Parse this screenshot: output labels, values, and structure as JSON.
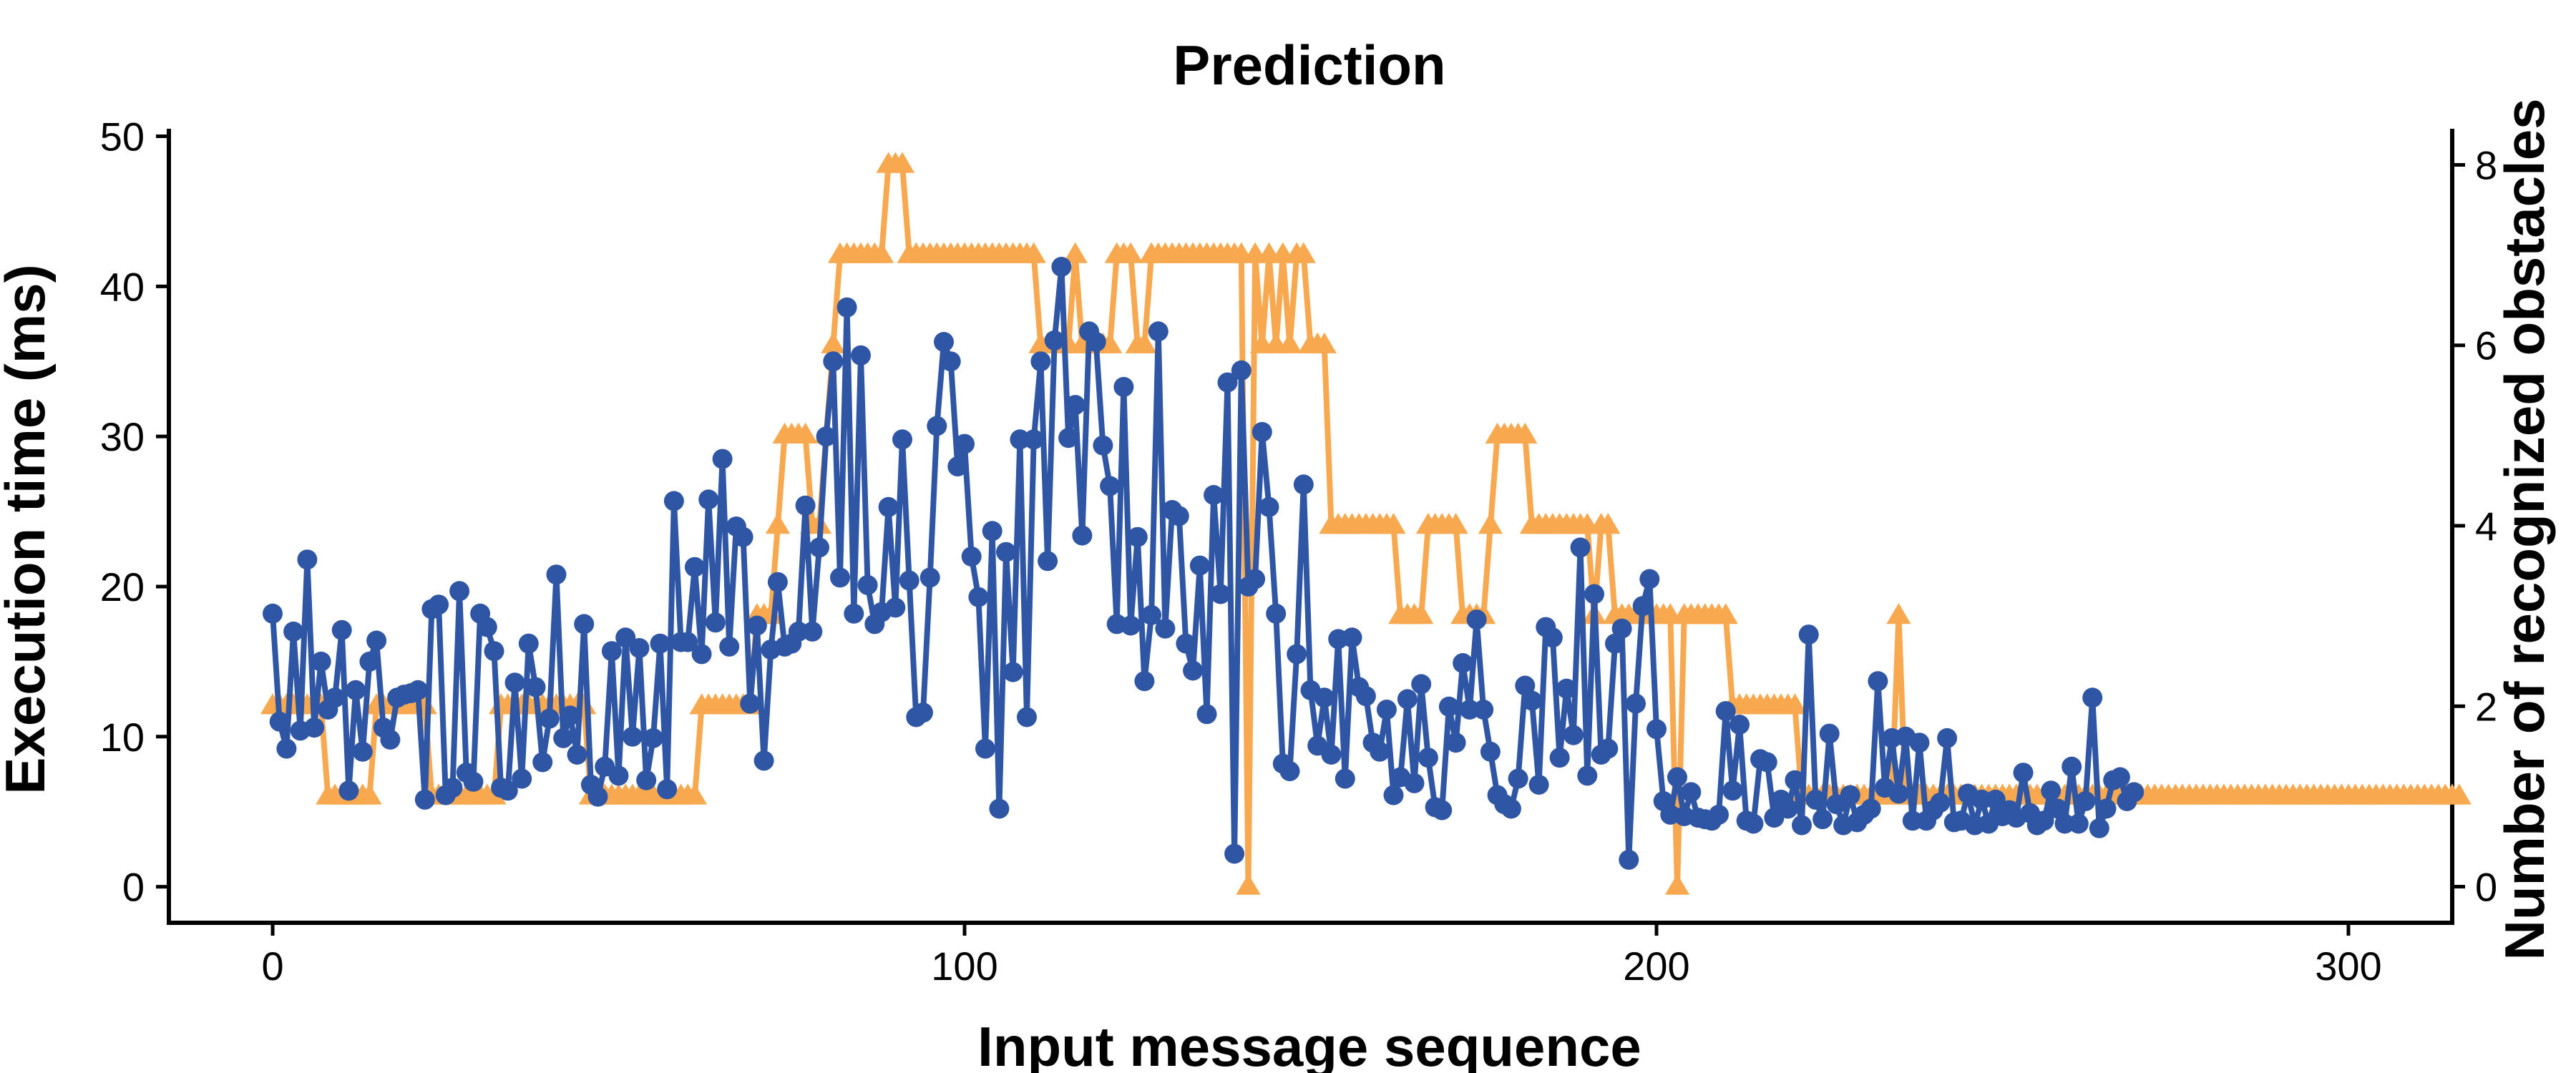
{
  "chart_data": {
    "type": "line",
    "title": "Prediction",
    "xlabel": "Input message sequence",
    "ylabel": "Execution time (ms)",
    "y2label": "Number of recognized obstacles",
    "xlim": [
      -15,
      315
    ],
    "ylim": [
      -2.4,
      50.5
    ],
    "y2lim": [
      -0.4,
      8.4
    ],
    "x_ticks": [
      0,
      100,
      200,
      300
    ],
    "y_ticks": [
      0,
      10,
      20,
      30,
      40,
      50
    ],
    "y2_ticks": [
      0,
      2,
      4,
      6,
      8
    ],
    "grid": false,
    "series": [
      {
        "axis": "left",
        "marker": "circle",
        "color": "#2E56A5",
        "x_start": 0,
        "x_step": 1,
        "values": [
          18.2,
          11,
          9.2,
          17,
          10.4,
          21.8,
          10.6,
          15,
          11.8,
          12.6,
          17.1,
          6.4,
          13.1,
          9,
          15,
          16.4,
          10.6,
          9.8,
          12.6,
          12.8,
          12.9,
          13.1,
          5.8,
          18.5,
          18.8,
          6.1,
          6.6,
          19.7,
          7.6,
          7,
          18.2,
          17.3,
          15.7,
          6.6,
          6.4,
          13.6,
          7.2,
          16.2,
          13.3,
          8.3,
          11.2,
          20.8,
          9.9,
          11.4,
          8.8,
          17.5,
          6.8,
          6,
          8,
          15.7,
          7.4,
          16.6,
          10,
          15.9,
          7.1,
          9.9,
          16.2,
          6.5,
          25.7,
          16.3,
          16.3,
          21.3,
          15.5,
          25.8,
          17.6,
          28.5,
          16,
          24,
          23.3,
          12.2,
          17.4,
          8.4,
          15.8,
          20.3,
          16,
          16.2,
          17,
          25.4,
          17,
          22.6,
          30,
          35,
          20.6,
          38.6,
          18.2,
          35.4,
          20.1,
          17.5,
          18.3,
          25.3,
          18.6,
          29.8,
          20.4,
          11.3,
          11.6,
          20.6,
          30.7,
          36.3,
          35,
          28,
          29.5,
          22,
          19.3,
          9.2,
          23.7,
          5.2,
          22.3,
          14.3,
          29.8,
          11.3,
          29.8,
          35,
          21.7,
          36.4,
          41.3,
          29.9,
          32.1,
          23.4,
          37,
          36.3,
          29.4,
          26.7,
          17.5,
          33.3,
          17.4,
          23.3,
          13.7,
          18.1,
          37,
          17.2,
          25.1,
          24.7,
          16.2,
          14.4,
          21.4,
          11.5,
          26.1,
          19.5,
          33.6,
          2.2,
          34.4,
          20,
          20.5,
          30.3,
          25.3,
          18.2,
          8.2,
          7.7,
          15.5,
          26.8,
          13.1,
          9.4,
          12.6,
          8.8,
          16.5,
          7.2,
          16.6,
          13.3,
          12.7,
          9.6,
          9,
          11.8,
          6.1,
          7.3,
          12.5,
          6.9,
          13.5,
          8.6,
          5.3,
          5.1,
          12,
          9.6,
          14.9,
          11.8,
          17.8,
          11.8,
          9,
          6.1,
          5.5,
          5.2,
          7.2,
          13.4,
          12.4,
          6.8,
          17.3,
          16.6,
          8.6,
          13.2,
          10.1,
          22.6,
          7.4,
          19.5,
          8.8,
          9.2,
          16.2,
          17.2,
          1.8,
          12.2,
          18.7,
          20.5,
          10.5,
          5.7,
          4.8,
          7.3,
          4.7,
          6.3,
          4.6,
          4.5,
          4.4,
          4.8,
          11.7,
          6.4,
          10.8,
          4.4,
          4.2,
          8.5,
          8.3,
          4.6,
          5.8,
          5.2,
          7.1,
          4.1,
          16.8,
          5.8,
          4.5,
          10.2,
          5.5,
          4.1,
          6.1,
          4.3,
          4.8,
          5.2,
          13.7,
          6.6,
          9.9,
          6.2,
          10,
          4.4,
          9.6,
          4.4,
          5.1,
          5.6,
          9.9,
          4.3,
          4.4,
          6.2,
          4.1,
          5.8,
          4.2,
          5.8,
          4.7,
          5.1,
          4.6,
          7.6,
          4.9,
          4.1,
          4.4,
          6.4,
          5.2,
          4.2,
          8,
          4.2,
          5.7,
          12.6,
          3.9,
          5.2,
          7.1,
          7.3,
          5.7,
          6.3
        ]
      },
      {
        "axis": "right",
        "marker": "triangle",
        "color": "#F8A84E",
        "x_start": 0,
        "x_step": 1,
        "values": [
          2,
          2,
          2,
          2,
          2,
          2,
          2,
          2,
          1,
          1,
          1,
          1,
          1,
          1,
          1,
          2,
          2,
          2,
          2,
          2,
          2,
          2,
          2,
          1,
          1,
          1,
          1,
          1,
          1,
          1,
          1,
          1,
          1,
          2,
          2,
          2,
          2,
          2,
          2,
          2,
          2,
          2,
          2,
          2,
          2,
          2,
          1,
          1,
          1,
          1,
          1,
          1,
          1,
          1,
          1,
          1,
          1,
          1,
          1,
          1,
          1,
          1,
          2,
          2,
          2,
          2,
          2,
          2,
          2,
          2,
          3,
          3,
          3,
          4,
          5,
          5,
          5,
          5,
          4,
          4,
          5,
          6,
          7,
          7,
          7,
          7,
          7,
          7,
          7,
          8,
          8,
          8,
          7,
          7,
          7,
          7,
          7,
          7,
          7,
          7,
          7,
          7,
          7,
          7,
          7,
          7,
          7,
          7,
          7,
          7,
          7,
          6,
          6,
          6,
          6,
          6,
          7,
          6,
          6,
          6,
          6,
          6,
          7,
          7,
          7,
          6,
          6,
          7,
          7,
          7,
          7,
          7,
          7,
          7,
          7,
          7,
          7,
          7,
          7,
          7,
          7,
          0,
          7,
          6,
          7,
          6,
          7,
          6,
          7,
          7,
          6,
          6,
          6,
          4,
          4,
          4,
          4,
          4,
          4,
          4,
          4,
          4,
          4,
          3,
          3,
          3,
          3,
          4,
          4,
          4,
          4,
          4,
          3,
          3,
          3,
          3,
          4,
          5,
          5,
          5,
          5,
          5,
          4,
          4,
          4,
          4,
          4,
          4,
          4,
          4,
          4,
          3,
          4,
          4,
          3,
          3,
          3,
          3,
          3,
          3,
          3,
          3,
          3,
          0,
          3,
          3,
          3,
          3,
          3,
          3,
          3,
          2,
          2,
          2,
          2,
          2,
          2,
          2,
          2,
          2,
          2,
          1,
          1,
          1,
          1,
          1,
          1,
          1,
          1,
          1,
          1,
          1,
          1,
          1,
          1,
          3,
          1,
          1,
          1,
          1,
          1,
          1,
          1,
          1,
          1,
          1,
          1,
          1,
          1,
          1,
          1,
          1,
          1,
          1,
          1,
          1,
          1,
          1,
          1,
          1,
          1,
          1,
          1,
          1,
          1,
          1,
          1,
          1,
          1,
          1,
          1,
          1,
          1,
          1,
          1,
          1,
          1,
          1,
          1,
          1,
          1,
          1,
          1,
          1,
          1,
          1,
          1,
          1,
          1,
          1,
          1,
          1,
          1,
          1,
          1,
          1,
          1,
          1,
          1,
          1,
          1,
          1,
          1,
          1,
          1,
          1,
          1,
          1,
          1,
          1,
          1,
          1,
          1,
          1,
          1,
          1,
          1
        ]
      }
    ]
  }
}
